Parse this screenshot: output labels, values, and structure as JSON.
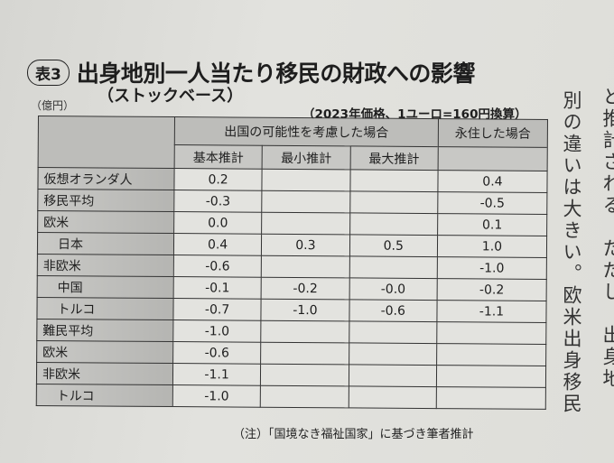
{
  "table_label": "表3",
  "title": "出身地別一人当たり移民の財政への影響",
  "subtitle": "（ストックベース）",
  "unit": "（億円）",
  "price_note": "（2023年価格、1ユーロ=160円換算）",
  "headers": {
    "group1": "出国の可能性を考慮した場合",
    "group2": "永住した場合",
    "sub": [
      "基本推計",
      "最小推計",
      "最大推計"
    ]
  },
  "rows": [
    {
      "label": "仮想オランダ人",
      "values": [
        "0.2",
        "",
        "",
        "0.4"
      ]
    },
    {
      "label": "移民平均",
      "values": [
        "-0.3",
        "",
        "",
        "-0.5"
      ]
    },
    {
      "label": "欧米",
      "values": [
        "0.0",
        "",
        "",
        "0.1"
      ]
    },
    {
      "label": "日本",
      "values": [
        "0.4",
        "0.3",
        "0.5",
        "1.0"
      ]
    },
    {
      "label": "非欧米",
      "values": [
        "-0.6",
        "",
        "",
        "-1.0"
      ]
    },
    {
      "label": "中国",
      "values": [
        "-0.1",
        "-0.2",
        "-0.0",
        "-0.2"
      ]
    },
    {
      "label": "トルコ",
      "values": [
        "-0.7",
        "-1.0",
        "-0.6",
        "-1.1"
      ]
    },
    {
      "label": "難民平均",
      "values": [
        "-1.0",
        "",
        "",
        ""
      ]
    },
    {
      "label": "欧米",
      "values": [
        "-0.6",
        "",
        "",
        ""
      ]
    },
    {
      "label": "非欧米",
      "values": [
        "-1.1",
        "",
        "",
        ""
      ]
    },
    {
      "label": "トルコ",
      "values": [
        "-1.0",
        "",
        "",
        ""
      ]
    }
  ],
  "footnote": "（注）「国境なき福祉国家」に基づき筆者推計",
  "body_text": {
    "column1": "別の違いは大きい。欧米出身移民",
    "column2": "と推計される　ただし　出身地"
  }
}
